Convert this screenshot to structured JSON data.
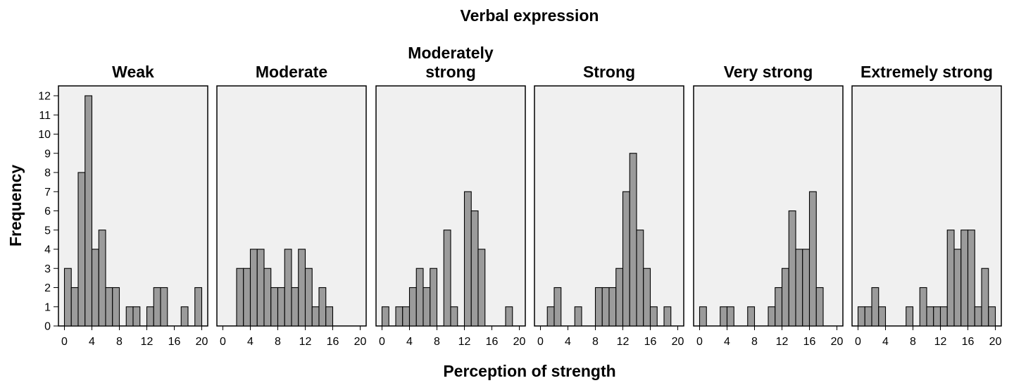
{
  "chart_data": {
    "type": "bar",
    "title": "Verbal expression",
    "xlabel": "Perception of strength",
    "ylabel": "Frequency",
    "xlim": [
      0,
      20
    ],
    "ylim": [
      0,
      12
    ],
    "bin_width": 1,
    "bin_starts": [
      0,
      1,
      2,
      3,
      4,
      5,
      6,
      7,
      8,
      9,
      10,
      11,
      12,
      13,
      14,
      15,
      16,
      17,
      18,
      19
    ],
    "x_ticks": [
      "0",
      "4",
      "8",
      "12",
      "16",
      "20"
    ],
    "y_ticks": [
      "0",
      "1",
      "2",
      "3",
      "4",
      "5",
      "6",
      "7",
      "8",
      "9",
      "10",
      "11",
      "12"
    ],
    "panels": [
      {
        "name": "Weak",
        "title_lines": [
          "Weak"
        ],
        "values": [
          3,
          2,
          8,
          12,
          4,
          5,
          2,
          2,
          0,
          1,
          1,
          0,
          1,
          2,
          2,
          0,
          0,
          1,
          0,
          2
        ]
      },
      {
        "name": "Moderate",
        "title_lines": [
          "Moderate"
        ],
        "values": [
          0,
          0,
          3,
          3,
          4,
          4,
          3,
          2,
          2,
          4,
          2,
          4,
          3,
          1,
          2,
          1,
          0,
          0,
          0,
          0
        ]
      },
      {
        "name": "Moderately strong",
        "title_lines": [
          "Moderately",
          "strong"
        ],
        "values": [
          1,
          0,
          1,
          1,
          2,
          3,
          2,
          3,
          0,
          5,
          1,
          0,
          7,
          6,
          4,
          0,
          0,
          0,
          1,
          0
        ]
      },
      {
        "name": "Strong",
        "title_lines": [
          "Strong"
        ],
        "values": [
          0,
          1,
          2,
          0,
          0,
          1,
          0,
          0,
          2,
          2,
          2,
          3,
          7,
          9,
          5,
          3,
          1,
          0,
          1,
          0
        ]
      },
      {
        "name": "Very strong",
        "title_lines": [
          "Very strong"
        ],
        "values": [
          1,
          0,
          0,
          1,
          1,
          0,
          0,
          1,
          0,
          0,
          1,
          2,
          3,
          6,
          4,
          4,
          7,
          2,
          0,
          0
        ]
      },
      {
        "name": "Extremely strong",
        "title_lines": [
          "Extremely strong"
        ],
        "values": [
          1,
          1,
          2,
          1,
          0,
          0,
          0,
          1,
          0,
          2,
          1,
          1,
          1,
          5,
          4,
          5,
          5,
          1,
          3,
          1
        ]
      }
    ]
  }
}
